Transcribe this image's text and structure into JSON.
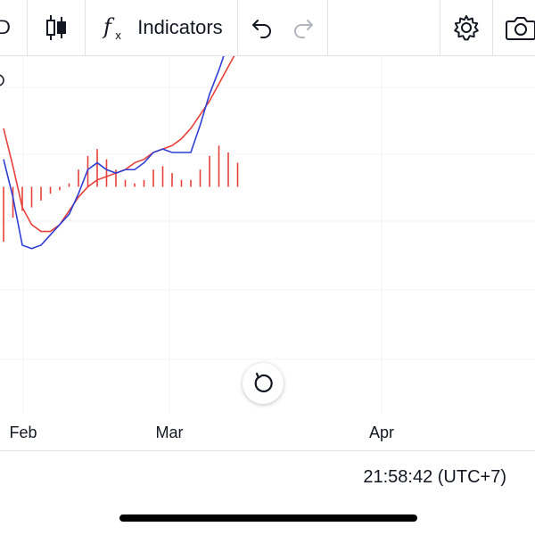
{
  "toolbar": {
    "cut_off_label": "D",
    "indicators_label": "Indicators",
    "icons": [
      "candlestick-icon",
      "function-fx-icon",
      "undo-icon",
      "redo-icon",
      "gear-icon",
      "camera-icon"
    ]
  },
  "chart_data": {
    "type": "line",
    "note_colors": {
      "line_1": "#2f3fd6",
      "line_2": "#e8403a",
      "histogram": "#e8403a"
    },
    "x_ticks": [
      "Feb",
      "Mar",
      "Apr"
    ],
    "series": [
      {
        "values": [
          9,
          3.5,
          -3.5,
          -4,
          -3.5,
          -2,
          -0.5,
          1,
          4,
          7.5,
          8.5,
          7.5,
          7,
          7.5,
          7.5,
          8.5,
          10,
          10.5,
          10,
          10,
          10,
          14,
          18.5,
          22,
          26,
          27.5,
          28.5
        ]
      },
      {
        "values": [
          13.5,
          8,
          2,
          -0.5,
          -1.5,
          -1.5,
          -0.5,
          1.5,
          3.5,
          5,
          6,
          6.5,
          7,
          7.5,
          8.5,
          9,
          10,
          10.5,
          11,
          12,
          13.5,
          15.5,
          17.5,
          20,
          22.5,
          25
        ]
      }
    ],
    "histogram": [
      -8,
      -4.5,
      -3.5,
      -3,
      -2,
      -1,
      -0.5,
      0.5,
      2.5,
      4.5,
      5.5,
      4,
      2.5,
      1,
      0.5,
      1,
      2.5,
      3,
      2,
      1,
      1,
      2.5,
      4.5,
      6,
      5,
      3.5
    ],
    "zero_level": 5
  },
  "footer": {
    "time": "21:58:42 (UTC+7)"
  }
}
